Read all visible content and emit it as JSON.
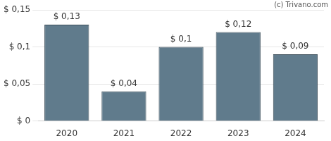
{
  "chart_data": {
    "type": "bar",
    "categories": [
      "2020",
      "2021",
      "2022",
      "2023",
      "2024"
    ],
    "values": [
      0.13,
      0.04,
      0.1,
      0.12,
      0.09
    ],
    "value_labels": [
      "$ 0,13",
      "$ 0,04",
      "$ 0,1",
      "$ 0,12",
      "$ 0,09"
    ],
    "data_labels": true,
    "color": "#607b8c",
    "ylim": [
      0,
      0.15
    ],
    "yticks": [
      {
        "value": 0,
        "label": "$ 0"
      },
      {
        "value": 0.05,
        "label": "$ 0,05"
      },
      {
        "value": 0.1,
        "label": "$ 0,1"
      },
      {
        "value": 0.15,
        "label": "$ 0,15"
      }
    ],
    "grid": true,
    "annotations": [
      "(c) Trivano.com"
    ]
  }
}
